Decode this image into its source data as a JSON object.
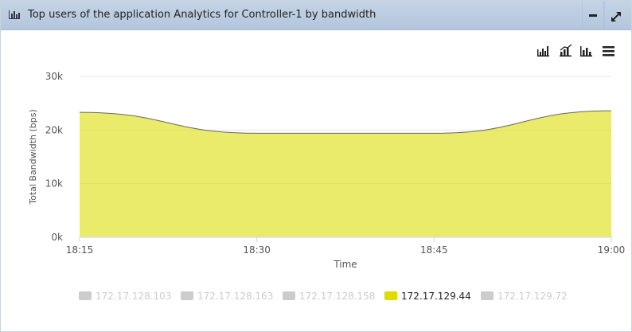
{
  "chart_data": {
    "type": "area",
    "title": "Top users of the application Analytics for Controller-1 by bandwidth",
    "x_label": "Time",
    "y_label": "Total Bandwidth (bps)",
    "categories": [
      "18:15",
      "18:30",
      "18:45",
      "19:00"
    ],
    "ylim": [
      0,
      30000
    ],
    "yticks": [
      {
        "value": 0,
        "label": "0k"
      },
      {
        "value": 10000,
        "label": "10k"
      },
      {
        "value": 20000,
        "label": "20k"
      },
      {
        "value": 30000,
        "label": "30k"
      }
    ],
    "grid": true,
    "series": [
      {
        "name": "172.17.128.103",
        "color": "#cccccc",
        "visible": false,
        "values": [
          null,
          null,
          null,
          null
        ]
      },
      {
        "name": "172.17.128.163",
        "color": "#cccccc",
        "visible": false,
        "values": [
          null,
          null,
          null,
          null
        ]
      },
      {
        "name": "172.17.128.158",
        "color": "#cccccc",
        "visible": false,
        "values": [
          null,
          null,
          null,
          null
        ]
      },
      {
        "name": "172.17.129.44",
        "color": "#dcdc00",
        "visible": true,
        "values": [
          23300,
          19400,
          19400,
          23600
        ]
      },
      {
        "name": "172.17.129.72",
        "color": "#cccccc",
        "visible": false,
        "values": [
          null,
          null,
          null,
          null
        ]
      }
    ]
  }
}
